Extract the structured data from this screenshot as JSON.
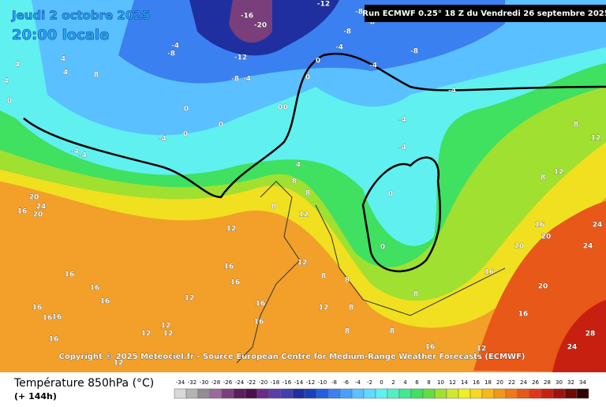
{
  "header": {
    "date": "Jeudi 2 octobre 2025",
    "time": "20:00 locale",
    "run": "Run ECMWF 0.25° 18 Z du Vendredi 26 septembre 2025"
  },
  "copyright": "Copyright © 2025 Meteociel.fr - Source European Centre for Medium-Range Weather Forecasts (ECMWF)",
  "footer": {
    "variable": "Température 850hPa (°C)",
    "lead": "(+ 144h)"
  },
  "scale": {
    "ticks": [
      -34,
      -32,
      -30,
      -28,
      -26,
      -24,
      -22,
      -20,
      -18,
      -16,
      -14,
      -12,
      -10,
      -8,
      -6,
      -4,
      -2,
      0,
      2,
      4,
      6,
      8,
      10,
      12,
      14,
      16,
      18,
      20,
      22,
      24,
      26,
      28,
      30,
      32,
      34
    ],
    "colors": [
      "#d8d8d8",
      "#b4b4b4",
      "#948c94",
      "#9a6a9a",
      "#7a3f7a",
      "#5a1f5a",
      "#4a0f50",
      "#6b2a8a",
      "#5a3fa8",
      "#3f3fb0",
      "#1f2fa0",
      "#1a40c0",
      "#2060e0",
      "#3a80f0",
      "#4aa0f8",
      "#5ac0ff",
      "#60d8ff",
      "#60f0f0",
      "#50f0c0",
      "#40e890",
      "#40e060",
      "#60e040",
      "#a0e030",
      "#d0e830",
      "#f0f020",
      "#f8d820",
      "#f8b818",
      "#f09818",
      "#f07818",
      "#e85818",
      "#e03818",
      "#c82010",
      "#a01010",
      "#700808",
      "#300000"
    ]
  },
  "map_labels": [
    -12,
    -8,
    -8,
    -8,
    -16,
    -20,
    -12,
    -8,
    -4,
    -8,
    -4,
    -4,
    0,
    -4,
    -8,
    4,
    4,
    8,
    4,
    4,
    0,
    0,
    0,
    0,
    -4,
    -4,
    -4,
    0,
    0,
    0,
    -4,
    -4,
    -4,
    0,
    0,
    8,
    12,
    8,
    12,
    4,
    8,
    8,
    8,
    12,
    12,
    16,
    20,
    24,
    20,
    16,
    16,
    12,
    8,
    8,
    8,
    16,
    16,
    20,
    20,
    24,
    24,
    20,
    16,
    28,
    24,
    16,
    16,
    16,
    16,
    16,
    16,
    16,
    12,
    12,
    12,
    12,
    12,
    16,
    16,
    12,
    8,
    8,
    8,
    12,
    16
  ]
}
